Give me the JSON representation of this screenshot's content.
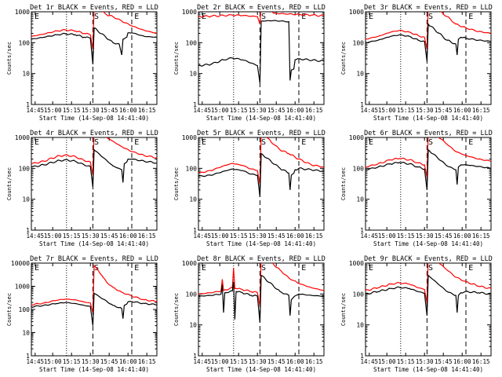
{
  "colors": {
    "events": "#000000",
    "lld": "#ff0000",
    "axes": "#000000",
    "background": "#ffffff"
  },
  "common": {
    "xlabel": "Start Time (14-Sep-08 14:41:40)",
    "ylabel": "Counts/sec",
    "x_tick_labels": [
      "14:45",
      "15:00",
      "15:15",
      "15:30",
      "15:45",
      "16:00",
      "16:15"
    ],
    "y_tick_labels": [
      "1",
      "10",
      "100",
      "1000"
    ],
    "y_tick_labels_big": [
      "1",
      "10",
      "100",
      "1000",
      "10000"
    ],
    "marker_labels": [
      "E",
      "S",
      "E"
    ]
  },
  "chart_data": [
    {
      "type": "line",
      "title": "Det 1r BLACK = Events, RED = LLD",
      "yscale": "log",
      "ylim": [
        1,
        1000
      ],
      "xlim": [
        "14:41:40",
        "16:21:40"
      ],
      "events": [
        [
          0,
          130
        ],
        [
          10,
          150
        ],
        [
          20,
          180
        ],
        [
          27,
          195
        ],
        [
          35,
          180
        ],
        [
          42,
          150
        ],
        [
          47,
          140
        ],
        [
          49,
          20
        ],
        [
          50,
          300
        ],
        [
          65,
          100
        ],
        [
          70,
          90
        ],
        [
          72,
          40
        ],
        [
          73,
          130
        ],
        [
          76,
          150
        ],
        [
          77,
          210
        ],
        [
          80,
          210
        ],
        [
          90,
          160
        ],
        [
          100,
          150
        ]
      ],
      "lld": [
        [
          0,
          160
        ],
        [
          10,
          190
        ],
        [
          20,
          240
        ],
        [
          27,
          260
        ],
        [
          35,
          240
        ],
        [
          42,
          200
        ],
        [
          47,
          180
        ],
        [
          49,
          60
        ],
        [
          50,
          1500
        ],
        [
          60,
          800
        ],
        [
          65,
          700
        ],
        [
          72,
          500
        ],
        [
          80,
          350
        ],
        [
          90,
          250
        ],
        [
          100,
          200
        ]
      ]
    },
    {
      "type": "line",
      "title": "Det 2r BLACK = Events, RED = LLD",
      "yscale": "log",
      "ylim": [
        1,
        1000
      ],
      "xlim": [
        "14:41:40",
        "16:21:40"
      ],
      "events": [
        [
          0,
          18
        ],
        [
          10,
          20
        ],
        [
          20,
          28
        ],
        [
          27,
          32
        ],
        [
          35,
          28
        ],
        [
          42,
          22
        ],
        [
          47,
          18
        ],
        [
          49,
          5
        ],
        [
          50,
          500
        ],
        [
          60,
          520
        ],
        [
          65,
          500
        ],
        [
          72,
          480
        ],
        [
          73,
          6
        ],
        [
          74,
          13
        ],
        [
          76,
          14
        ],
        [
          77,
          28
        ],
        [
          80,
          30
        ],
        [
          100,
          25
        ]
      ],
      "lld": [
        [
          0,
          700
        ],
        [
          10,
          720
        ],
        [
          20,
          760
        ],
        [
          27,
          780
        ],
        [
          35,
          760
        ],
        [
          42,
          720
        ],
        [
          47,
          700
        ],
        [
          49,
          400
        ],
        [
          50,
          2000
        ],
        [
          60,
          900
        ],
        [
          70,
          850
        ],
        [
          80,
          820
        ],
        [
          90,
          780
        ],
        [
          100,
          740
        ]
      ]
    },
    {
      "type": "line",
      "title": "Det 3r BLACK = Events, RED = LLD",
      "yscale": "log",
      "ylim": [
        1,
        1000
      ],
      "xlim": [
        "14:41:40",
        "16:21:40"
      ],
      "events": [
        [
          0,
          100
        ],
        [
          10,
          120
        ],
        [
          20,
          160
        ],
        [
          27,
          180
        ],
        [
          35,
          160
        ],
        [
          42,
          120
        ],
        [
          47,
          110
        ],
        [
          49,
          25
        ],
        [
          50,
          400
        ],
        [
          65,
          120
        ],
        [
          72,
          90
        ],
        [
          73,
          40
        ],
        [
          74,
          130
        ],
        [
          76,
          150
        ],
        [
          80,
          140
        ],
        [
          90,
          120
        ],
        [
          100,
          110
        ]
      ],
      "lld": [
        [
          0,
          130
        ],
        [
          10,
          160
        ],
        [
          20,
          220
        ],
        [
          27,
          250
        ],
        [
          35,
          220
        ],
        [
          42,
          170
        ],
        [
          47,
          150
        ],
        [
          49,
          60
        ],
        [
          50,
          2000
        ],
        [
          60,
          1000
        ],
        [
          65,
          700
        ],
        [
          72,
          400
        ],
        [
          80,
          300
        ],
        [
          90,
          230
        ],
        [
          100,
          200
        ]
      ]
    },
    {
      "type": "line",
      "title": "Det 4r BLACK = Events, RED = LLD",
      "yscale": "log",
      "ylim": [
        1,
        1000
      ],
      "xlim": [
        "14:41:40",
        "16:21:40"
      ],
      "events": [
        [
          0,
          110
        ],
        [
          10,
          130
        ],
        [
          20,
          170
        ],
        [
          27,
          190
        ],
        [
          35,
          170
        ],
        [
          42,
          130
        ],
        [
          47,
          115
        ],
        [
          49,
          25
        ],
        [
          50,
          400
        ],
        [
          65,
          120
        ],
        [
          72,
          90
        ],
        [
          73,
          35
        ],
        [
          74,
          140
        ],
        [
          76,
          160
        ],
        [
          77,
          200
        ],
        [
          80,
          200
        ],
        [
          90,
          170
        ],
        [
          100,
          150
        ]
      ],
      "lld": [
        [
          0,
          140
        ],
        [
          10,
          170
        ],
        [
          20,
          240
        ],
        [
          27,
          270
        ],
        [
          35,
          240
        ],
        [
          42,
          180
        ],
        [
          47,
          160
        ],
        [
          49,
          60
        ],
        [
          50,
          2000
        ],
        [
          60,
          1000
        ],
        [
          65,
          750
        ],
        [
          72,
          500
        ],
        [
          80,
          350
        ],
        [
          90,
          260
        ],
        [
          100,
          220
        ]
      ]
    },
    {
      "type": "line",
      "title": "Det 5r BLACK = Events, RED = LLD",
      "yscale": "log",
      "ylim": [
        1,
        1000
      ],
      "xlim": [
        "14:41:40",
        "16:21:40"
      ],
      "events": [
        [
          0,
          55
        ],
        [
          10,
          60
        ],
        [
          20,
          80
        ],
        [
          27,
          95
        ],
        [
          35,
          85
        ],
        [
          42,
          65
        ],
        [
          47,
          60
        ],
        [
          49,
          12
        ],
        [
          50,
          300
        ],
        [
          65,
          100
        ],
        [
          72,
          70
        ],
        [
          73,
          20
        ],
        [
          74,
          60
        ],
        [
          76,
          70
        ],
        [
          77,
          90
        ],
        [
          80,
          100
        ],
        [
          90,
          90
        ],
        [
          100,
          80
        ]
      ],
      "lld": [
        [
          0,
          70
        ],
        [
          10,
          85
        ],
        [
          20,
          120
        ],
        [
          27,
          145
        ],
        [
          35,
          125
        ],
        [
          42,
          95
        ],
        [
          47,
          85
        ],
        [
          49,
          30
        ],
        [
          50,
          1500
        ],
        [
          60,
          600
        ],
        [
          65,
          400
        ],
        [
          72,
          300
        ],
        [
          80,
          200
        ],
        [
          90,
          130
        ],
        [
          100,
          110
        ]
      ]
    },
    {
      "type": "line",
      "title": "Det 6r BLACK = Events, RED = LLD",
      "yscale": "log",
      "ylim": [
        1,
        1000
      ],
      "xlim": [
        "14:41:40",
        "16:21:40"
      ],
      "events": [
        [
          0,
          90
        ],
        [
          10,
          110
        ],
        [
          20,
          140
        ],
        [
          27,
          155
        ],
        [
          35,
          140
        ],
        [
          42,
          110
        ],
        [
          47,
          95
        ],
        [
          49,
          20
        ],
        [
          50,
          400
        ],
        [
          65,
          120
        ],
        [
          72,
          90
        ],
        [
          73,
          30
        ],
        [
          74,
          110
        ],
        [
          76,
          130
        ],
        [
          80,
          130
        ],
        [
          90,
          115
        ],
        [
          100,
          100
        ]
      ],
      "lld": [
        [
          0,
          110
        ],
        [
          10,
          140
        ],
        [
          20,
          190
        ],
        [
          27,
          210
        ],
        [
          35,
          190
        ],
        [
          42,
          150
        ],
        [
          47,
          130
        ],
        [
          49,
          50
        ],
        [
          50,
          2000
        ],
        [
          60,
          900
        ],
        [
          65,
          600
        ],
        [
          72,
          350
        ],
        [
          80,
          260
        ],
        [
          90,
          200
        ],
        [
          100,
          170
        ]
      ]
    },
    {
      "type": "line",
      "title": "Det 7r BLACK = Events, RED = LLD",
      "yscale": "log",
      "ylim": [
        1,
        10000
      ],
      "xlim": [
        "14:41:40",
        "16:21:40"
      ],
      "events": [
        [
          0,
          130
        ],
        [
          10,
          150
        ],
        [
          20,
          180
        ],
        [
          27,
          200
        ],
        [
          35,
          180
        ],
        [
          42,
          150
        ],
        [
          47,
          135
        ],
        [
          49,
          20
        ],
        [
          50,
          500
        ],
        [
          65,
          150
        ],
        [
          72,
          110
        ],
        [
          73,
          40
        ],
        [
          74,
          150
        ],
        [
          76,
          170
        ],
        [
          77,
          210
        ],
        [
          80,
          220
        ],
        [
          90,
          180
        ],
        [
          100,
          160
        ]
      ],
      "lld": [
        [
          0,
          160
        ],
        [
          10,
          190
        ],
        [
          20,
          250
        ],
        [
          27,
          280
        ],
        [
          35,
          260
        ],
        [
          42,
          210
        ],
        [
          47,
          190
        ],
        [
          49,
          70
        ],
        [
          50,
          8000
        ],
        [
          56,
          3000
        ],
        [
          60,
          1500
        ],
        [
          65,
          900
        ],
        [
          72,
          550
        ],
        [
          80,
          380
        ],
        [
          90,
          260
        ],
        [
          100,
          220
        ]
      ]
    },
    {
      "type": "line",
      "title": "Det 8r BLACK = Events, RED = LLD",
      "yscale": "log",
      "ylim": [
        1,
        1000
      ],
      "xlim": [
        "14:41:40",
        "16:21:40"
      ],
      "events": [
        [
          0,
          85
        ],
        [
          10,
          90
        ],
        [
          18,
          100
        ],
        [
          19,
          200
        ],
        [
          20,
          25
        ],
        [
          21,
          110
        ],
        [
          27,
          125
        ],
        [
          28,
          250
        ],
        [
          29,
          15
        ],
        [
          30,
          120
        ],
        [
          35,
          110
        ],
        [
          42,
          90
        ],
        [
          47,
          85
        ],
        [
          49,
          12
        ],
        [
          50,
          400
        ],
        [
          65,
          120
        ],
        [
          72,
          90
        ],
        [
          73,
          20
        ],
        [
          74,
          65
        ],
        [
          76,
          80
        ],
        [
          80,
          100
        ],
        [
          90,
          90
        ],
        [
          100,
          85
        ]
      ],
      "lld": [
        [
          0,
          100
        ],
        [
          10,
          110
        ],
        [
          18,
          125
        ],
        [
          19,
          300
        ],
        [
          20,
          130
        ],
        [
          27,
          160
        ],
        [
          28,
          700
        ],
        [
          29,
          150
        ],
        [
          30,
          150
        ],
        [
          35,
          140
        ],
        [
          42,
          120
        ],
        [
          47,
          110
        ],
        [
          49,
          40
        ],
        [
          50,
          2000
        ],
        [
          60,
          900
        ],
        [
          65,
          600
        ],
        [
          72,
          330
        ],
        [
          80,
          220
        ],
        [
          90,
          160
        ],
        [
          100,
          130
        ]
      ]
    },
    {
      "type": "line",
      "title": "Det 9r BLACK = Events, RED = LLD",
      "yscale": "log",
      "ylim": [
        1,
        1000
      ],
      "xlim": [
        "14:41:40",
        "16:21:40"
      ],
      "events": [
        [
          0,
          100
        ],
        [
          10,
          120
        ],
        [
          20,
          150
        ],
        [
          27,
          165
        ],
        [
          35,
          150
        ],
        [
          42,
          120
        ],
        [
          47,
          105
        ],
        [
          49,
          20
        ],
        [
          50,
          400
        ],
        [
          65,
          120
        ],
        [
          72,
          90
        ],
        [
          73,
          25
        ],
        [
          74,
          90
        ],
        [
          76,
          110
        ],
        [
          80,
          120
        ],
        [
          90,
          110
        ],
        [
          100,
          100
        ]
      ],
      "lld": [
        [
          0,
          130
        ],
        [
          10,
          160
        ],
        [
          20,
          210
        ],
        [
          27,
          230
        ],
        [
          35,
          210
        ],
        [
          42,
          160
        ],
        [
          47,
          140
        ],
        [
          49,
          50
        ],
        [
          50,
          2000
        ],
        [
          60,
          900
        ],
        [
          65,
          600
        ],
        [
          72,
          350
        ],
        [
          80,
          250
        ],
        [
          90,
          180
        ],
        [
          100,
          150
        ]
      ]
    }
  ]
}
